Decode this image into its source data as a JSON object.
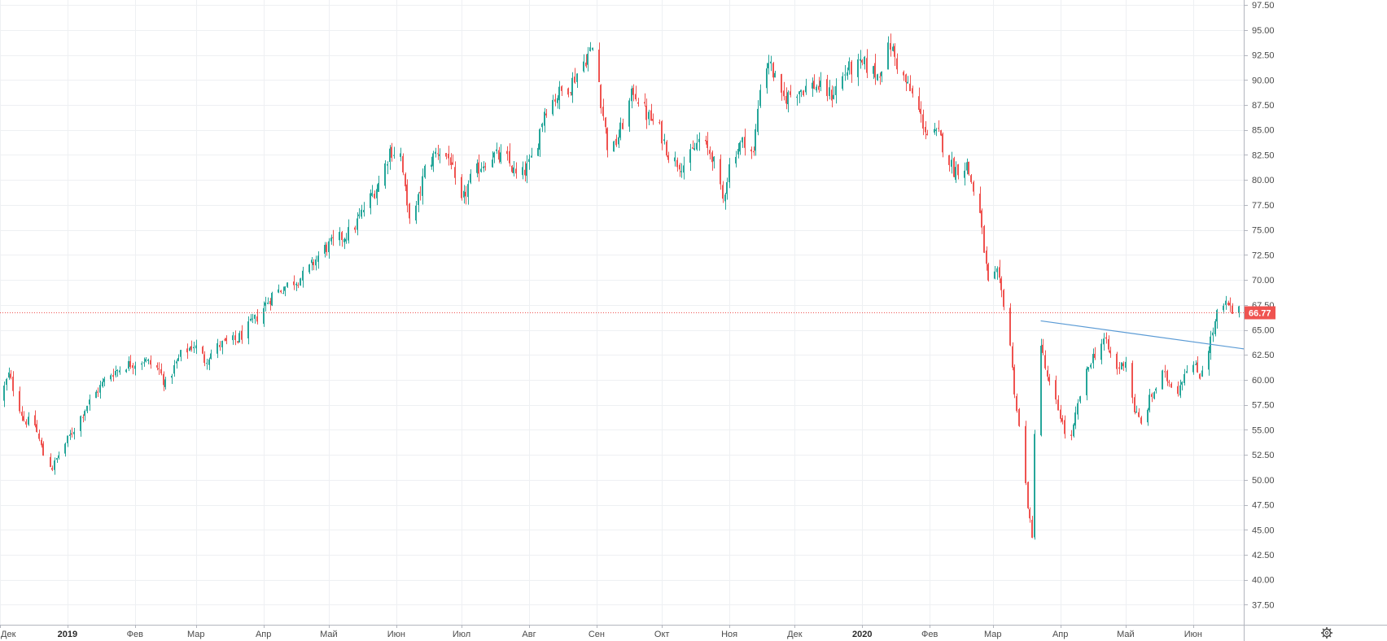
{
  "chart_data": {
    "type": "candlestick",
    "title": "",
    "xlabel": "",
    "ylabel": "",
    "ylim": [
      35.5,
      98
    ],
    "y_ticks": [
      37.5,
      40.0,
      42.5,
      45.0,
      47.5,
      50.0,
      52.5,
      55.0,
      57.5,
      60.0,
      62.5,
      65.0,
      67.5,
      70.0,
      72.5,
      75.0,
      77.5,
      80.0,
      82.5,
      85.0,
      87.5,
      90.0,
      92.5,
      95.0,
      97.5
    ],
    "x_ticks": [
      {
        "label": "Дек",
        "date": "2018-12-01"
      },
      {
        "label": "2019",
        "date": "2019-01-01",
        "bold": true
      },
      {
        "label": "Фев",
        "date": "2019-02-01"
      },
      {
        "label": "Мар",
        "date": "2019-03-01"
      },
      {
        "label": "Апр",
        "date": "2019-04-01"
      },
      {
        "label": "Май",
        "date": "2019-05-01"
      },
      {
        "label": "Июн",
        "date": "2019-06-01"
      },
      {
        "label": "Июл",
        "date": "2019-07-01"
      },
      {
        "label": "Авг",
        "date": "2019-08-01"
      },
      {
        "label": "Сен",
        "date": "2019-09-01"
      },
      {
        "label": "Окт",
        "date": "2019-10-01"
      },
      {
        "label": "Ноя",
        "date": "2019-11-01"
      },
      {
        "label": "Дек",
        "date": "2019-12-01"
      },
      {
        "label": "2020",
        "date": "2020-01-01",
        "bold": true
      },
      {
        "label": "Фев",
        "date": "2020-02-01"
      },
      {
        "label": "Мар",
        "date": "2020-03-01"
      },
      {
        "label": "Апр",
        "date": "2020-04-01"
      },
      {
        "label": "Май",
        "date": "2020-05-01"
      },
      {
        "label": "Июн",
        "date": "2020-06-01"
      }
    ],
    "x_range": [
      "2018-12-01",
      "2020-06-22"
    ],
    "last_price": {
      "value": 66.77,
      "label": "66.77"
    },
    "trend_line": {
      "start": {
        "date": "2020-03-23",
        "value": 65.9
      },
      "end": {
        "date": "2020-06-22",
        "value": 63.1
      }
    },
    "close_path": [
      [
        "2018-12-01",
        58.0
      ],
      [
        "2018-12-05",
        60.5
      ],
      [
        "2018-12-12",
        56.0
      ],
      [
        "2018-12-17",
        55.5
      ],
      [
        "2018-12-21",
        52.5
      ],
      [
        "2018-12-25",
        51.2
      ],
      [
        "2018-12-28",
        52.5
      ],
      [
        "2019-01-05",
        55.5
      ],
      [
        "2019-01-10",
        57.5
      ],
      [
        "2019-01-20",
        60.5
      ],
      [
        "2019-01-28",
        61.5
      ],
      [
        "2019-02-05",
        62.0
      ],
      [
        "2019-02-12",
        61.0
      ],
      [
        "2019-02-15",
        59.5
      ],
      [
        "2019-02-22",
        62.5
      ],
      [
        "2019-02-28",
        63.5
      ],
      [
        "2019-03-05",
        62.0
      ],
      [
        "2019-03-12",
        63.5
      ],
      [
        "2019-03-20",
        64.0
      ],
      [
        "2019-03-28",
        66.0
      ],
      [
        "2019-04-05",
        68.5
      ],
      [
        "2019-04-12",
        69.5
      ],
      [
        "2019-04-20",
        70.5
      ],
      [
        "2019-04-28",
        73.0
      ],
      [
        "2019-05-05",
        74.0
      ],
      [
        "2019-05-12",
        75.0
      ],
      [
        "2019-05-18",
        77.5
      ],
      [
        "2019-05-25",
        80.0
      ],
      [
        "2019-05-29",
        83.0
      ],
      [
        "2019-06-03",
        82.5
      ],
      [
        "2019-06-06",
        77.0
      ],
      [
        "2019-06-09",
        76.0
      ],
      [
        "2019-06-14",
        81.0
      ],
      [
        "2019-06-20",
        83.0
      ],
      [
        "2019-06-26",
        82.0
      ],
      [
        "2019-06-30",
        77.0
      ],
      [
        "2019-07-05",
        80.0
      ],
      [
        "2019-07-10",
        81.5
      ],
      [
        "2019-07-15",
        82.5
      ],
      [
        "2019-07-22",
        82.0
      ],
      [
        "2019-07-27",
        80.0
      ],
      [
        "2019-08-01",
        81.5
      ],
      [
        "2019-08-05",
        84.0
      ],
      [
        "2019-08-08",
        87.0
      ],
      [
        "2019-08-14",
        88.5
      ],
      [
        "2019-08-20",
        89.5
      ],
      [
        "2019-08-25",
        91.5
      ],
      [
        "2019-08-31",
        93.5
      ],
      [
        "2019-09-03",
        88.0
      ],
      [
        "2019-09-07",
        82.0
      ],
      [
        "2019-09-12",
        85.0
      ],
      [
        "2019-09-18",
        89.0
      ],
      [
        "2019-09-24",
        86.5
      ],
      [
        "2019-09-30",
        85.0
      ],
      [
        "2019-10-05",
        82.0
      ],
      [
        "2019-10-12",
        81.5
      ],
      [
        "2019-10-18",
        84.0
      ],
      [
        "2019-10-24",
        82.5
      ],
      [
        "2019-10-29",
        78.0
      ],
      [
        "2019-11-02",
        82.5
      ],
      [
        "2019-11-08",
        84.0
      ],
      [
        "2019-11-12",
        82.5
      ],
      [
        "2019-11-15",
        89.5
      ],
      [
        "2019-11-19",
        92.0
      ],
      [
        "2019-11-25",
        88.0
      ],
      [
        "2019-12-02",
        89.0
      ],
      [
        "2019-12-10",
        89.5
      ],
      [
        "2019-12-18",
        88.5
      ],
      [
        "2019-12-25",
        91.0
      ],
      [
        "2020-01-02",
        91.5
      ],
      [
        "2020-01-08",
        90.5
      ],
      [
        "2020-01-14",
        93.5
      ],
      [
        "2020-01-18",
        91.0
      ],
      [
        "2020-01-25",
        88.0
      ],
      [
        "2020-01-31",
        84.5
      ],
      [
        "2020-02-05",
        84.5
      ],
      [
        "2020-02-12",
        81.0
      ],
      [
        "2020-02-18",
        81.5
      ],
      [
        "2020-02-24",
        76.5
      ],
      [
        "2020-02-28",
        69.5
      ],
      [
        "2020-03-03",
        70.5
      ],
      [
        "2020-03-08",
        66.0
      ],
      [
        "2020-03-10",
        61.0
      ],
      [
        "2020-03-12",
        57.0
      ],
      [
        "2020-03-14",
        53.5
      ],
      [
        "2020-03-17",
        47.5
      ],
      [
        "2020-03-19",
        44.0
      ],
      [
        "2020-03-20",
        55.0
      ],
      [
        "2020-03-22",
        60.0
      ],
      [
        "2020-03-23",
        63.5
      ],
      [
        "2020-03-26",
        60.0
      ],
      [
        "2020-04-01",
        56.5
      ],
      [
        "2020-04-05",
        53.0
      ],
      [
        "2020-04-10",
        58.5
      ],
      [
        "2020-04-15",
        62.0
      ],
      [
        "2020-04-21",
        64.0
      ],
      [
        "2020-04-27",
        61.0
      ],
      [
        "2020-05-01",
        62.0
      ],
      [
        "2020-05-05",
        57.0
      ],
      [
        "2020-05-08",
        55.5
      ],
      [
        "2020-05-12",
        58.0
      ],
      [
        "2020-05-18",
        60.5
      ],
      [
        "2020-05-25",
        59.0
      ],
      [
        "2020-05-30",
        62.0
      ],
      [
        "2020-06-04",
        60.5
      ],
      [
        "2020-06-09",
        64.0
      ],
      [
        "2020-06-12",
        66.5
      ],
      [
        "2020-06-16",
        67.5
      ],
      [
        "2020-06-19",
        66.8
      ],
      [
        "2020-06-22",
        66.8
      ]
    ],
    "colors": {
      "up": "#26a69a",
      "down": "#ef5350",
      "grid": "#eef0f3",
      "axis": "#b2b5be",
      "trend_line": "#5b9bd5",
      "price_line": "#ef5350",
      "price_tag": "#ef5350"
    },
    "grid": true
  },
  "toolbar": {
    "settings_icon": "gear-icon"
  }
}
